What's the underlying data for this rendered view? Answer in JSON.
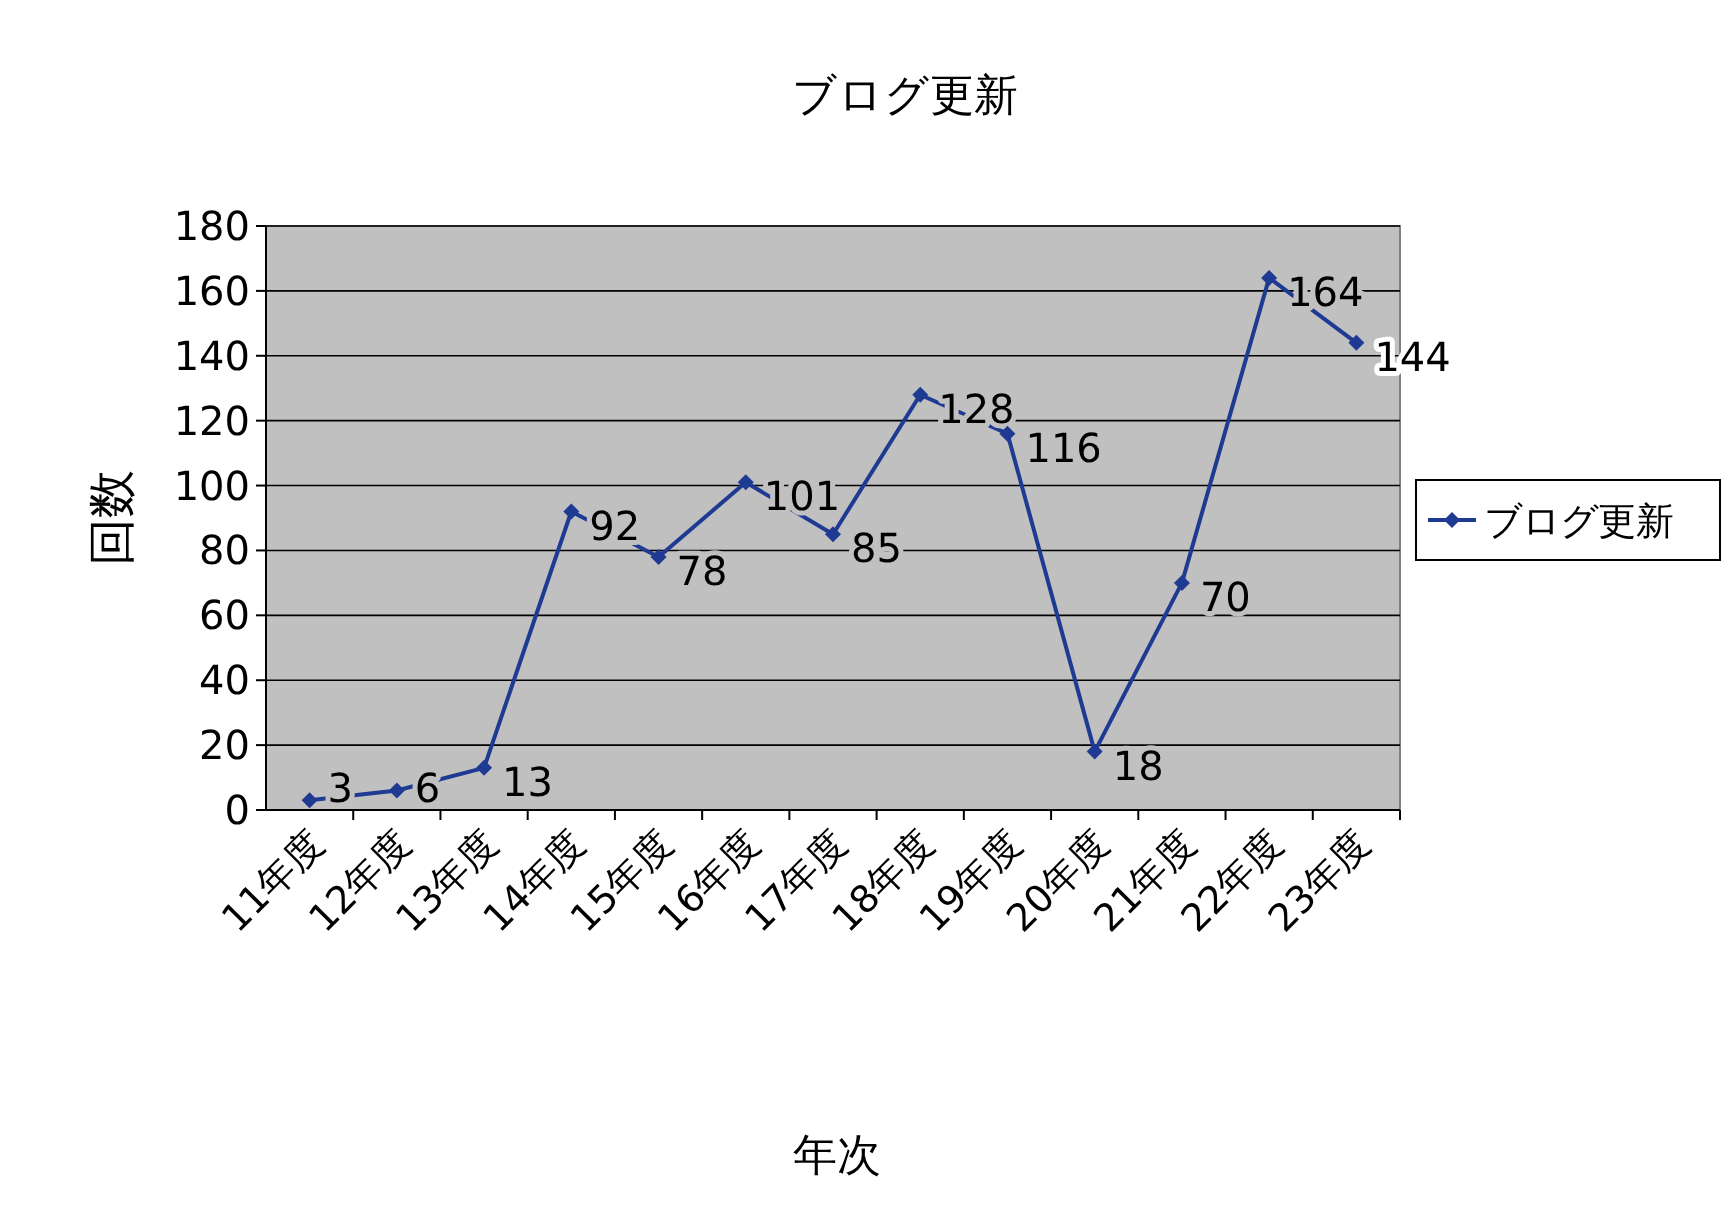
{
  "chart_data": {
    "type": "line",
    "title": "ブログ更新",
    "xlabel": "年次",
    "ylabel": "回数",
    "categories": [
      "11年度",
      "12年度",
      "13年度",
      "14年度",
      "15年度",
      "16年度",
      "17年度",
      "18年度",
      "19年度",
      "20年度",
      "21年度",
      "22年度",
      "23年度"
    ],
    "series": [
      {
        "name": "ブログ更新",
        "color": "#1f3a93",
        "values": [
          3,
          6,
          13,
          92,
          78,
          101,
          85,
          128,
          116,
          18,
          70,
          164,
          144
        ]
      }
    ],
    "ylim": [
      0,
      180
    ],
    "yticks": [
      0,
      20,
      40,
      60,
      80,
      100,
      120,
      140,
      160,
      180
    ],
    "grid": "y",
    "legend": "right",
    "marker": "diamond",
    "line_style": "solid",
    "data_labels": true
  }
}
